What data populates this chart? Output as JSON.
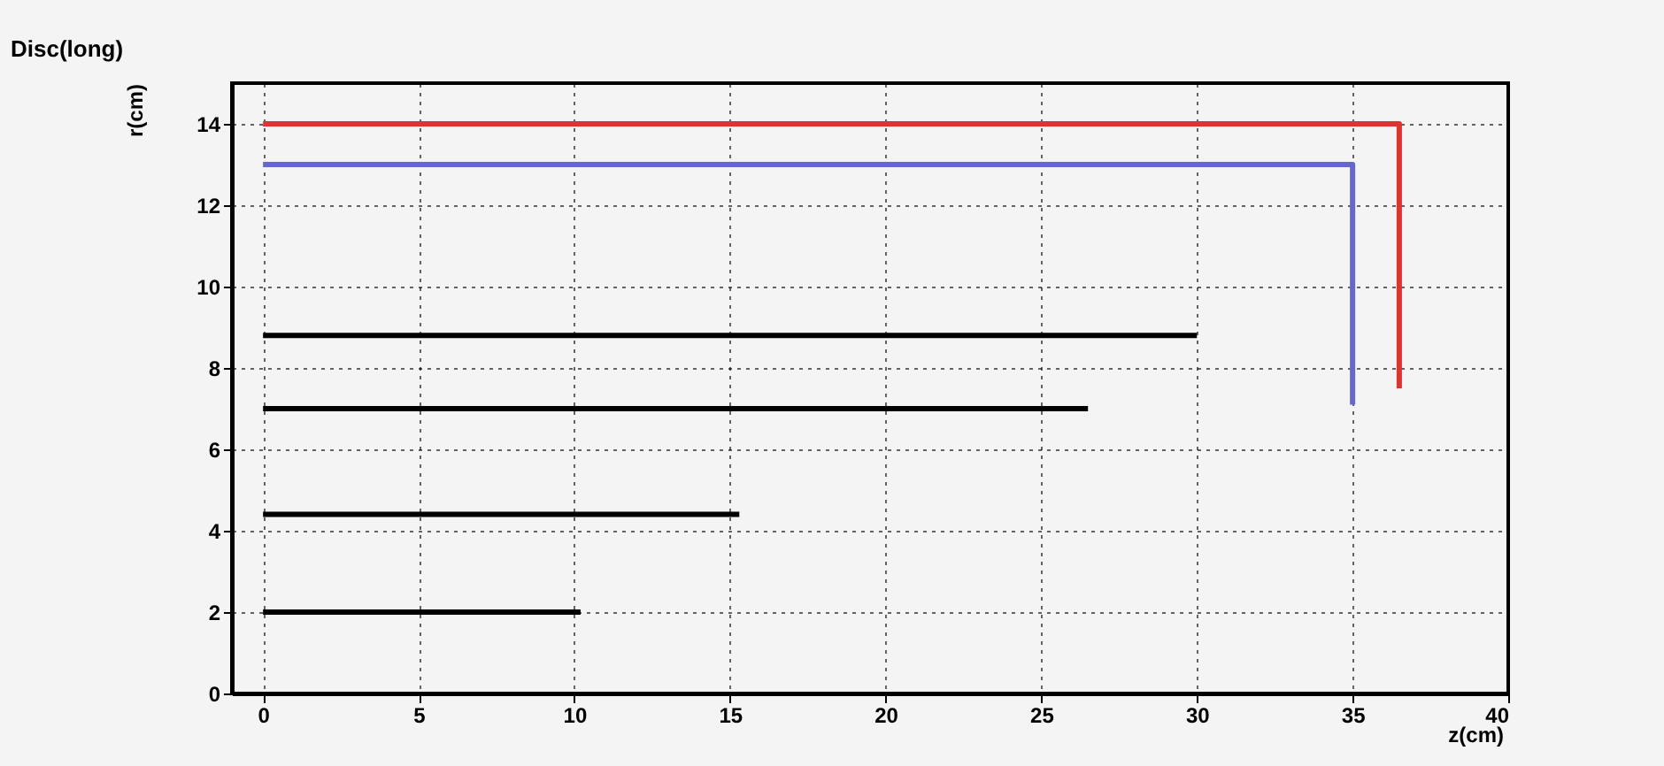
{
  "chart_data": {
    "type": "line",
    "title": "Disc(long)",
    "xlabel": "z(cm)",
    "ylabel": "r(cm)",
    "series": [
      {
        "color": "#000000",
        "x": [
          0,
          10.2
        ],
        "values": [
          2,
          2
        ]
      },
      {
        "color": "#000000",
        "x": [
          0,
          15.3
        ],
        "values": [
          4.4,
          4.4
        ]
      },
      {
        "color": "#000000",
        "x": [
          0,
          26.5
        ],
        "values": [
          7,
          7
        ]
      },
      {
        "color": "#000000",
        "x": [
          0,
          30
        ],
        "values": [
          8.8,
          8.8
        ]
      },
      {
        "color": "#6666cc",
        "x": [
          0,
          35,
          35
        ],
        "values": [
          13,
          13,
          7.1
        ]
      },
      {
        "color": "#dd3333",
        "x": [
          0,
          36.5,
          36.5
        ],
        "values": [
          14,
          14,
          7.5
        ]
      }
    ],
    "xlim": [
      -1,
      40
    ],
    "ylim": [
      0,
      15
    ],
    "xticks": [
      0,
      5,
      10,
      15,
      20,
      25,
      30,
      35,
      40
    ],
    "yticks": [
      0,
      2,
      4,
      6,
      8,
      10,
      12,
      14
    ],
    "grid": true,
    "marker": "none",
    "line_style": "solid"
  }
}
